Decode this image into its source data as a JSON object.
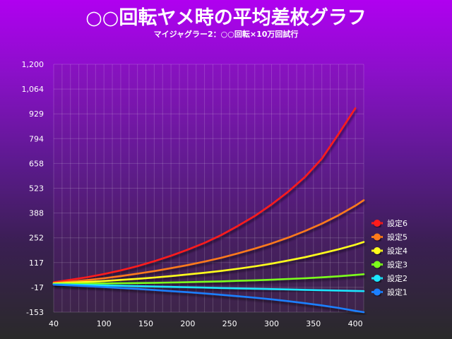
{
  "title": "○○回転ヤメ時の平均差枚グラフ",
  "subtitle": "マイジャグラー2：○○回転×10万回試行",
  "chart_data": {
    "type": "line",
    "title": "○○回転ヤメ時の平均差枚グラフ",
    "subtitle": "マイジャグラー2：○○回転×10万回試行",
    "xlabel": "",
    "ylabel": "",
    "xlim": [
      40,
      410
    ],
    "ylim": [
      -153,
      1200
    ],
    "x_ticks": [
      "40",
      "100",
      "150",
      "200",
      "250",
      "300",
      "350",
      "400"
    ],
    "y_ticks": [
      "1,200",
      "1,064",
      "929",
      "794",
      "658",
      "523",
      "388",
      "252",
      "117",
      "-17",
      "-153"
    ],
    "grid": true,
    "legend_position": "right",
    "series": [
      {
        "name": "設定6",
        "color": "#ff1a1a",
        "x": [
          40,
          60,
          80,
          100,
          120,
          140,
          160,
          180,
          200,
          220,
          240,
          260,
          280,
          300,
          320,
          340,
          360,
          380,
          400
        ],
        "values": [
          10,
          24,
          38,
          55,
          75,
          98,
          125,
          155,
          188,
          225,
          268,
          318,
          372,
          435,
          505,
          585,
          685,
          820,
          960
        ]
      },
      {
        "name": "設定5",
        "color": "#ff7a1a",
        "x": [
          40,
          60,
          80,
          100,
          120,
          140,
          160,
          180,
          200,
          220,
          240,
          260,
          280,
          300,
          320,
          340,
          360,
          380,
          400,
          410
        ],
        "values": [
          6,
          14,
          22,
          32,
          44,
          57,
          71,
          87,
          104,
          123,
          144,
          168,
          194,
          222,
          254,
          290,
          330,
          376,
          428,
          458
        ]
      },
      {
        "name": "設定4",
        "color": "#ffff1a",
        "x": [
          40,
          60,
          80,
          100,
          120,
          140,
          160,
          180,
          200,
          220,
          240,
          260,
          280,
          300,
          320,
          340,
          360,
          380,
          400,
          410
        ],
        "values": [
          4,
          8,
          12,
          17,
          23,
          29,
          36,
          44,
          53,
          62,
          72,
          84,
          97,
          112,
          129,
          147,
          168,
          190,
          215,
          230
        ]
      },
      {
        "name": "設定3",
        "color": "#7cff1a",
        "x": [
          40,
          60,
          80,
          100,
          120,
          140,
          160,
          180,
          200,
          220,
          240,
          260,
          280,
          300,
          320,
          340,
          360,
          380,
          400,
          410
        ],
        "values": [
          1,
          2,
          3,
          4,
          5,
          6,
          7,
          9,
          11,
          13,
          15,
          18,
          21,
          24,
          28,
          32,
          37,
          43,
          50,
          54
        ]
      },
      {
        "name": "設定2",
        "color": "#1ae5ff",
        "x": [
          40,
          60,
          80,
          100,
          120,
          140,
          160,
          180,
          200,
          220,
          240,
          260,
          280,
          300,
          320,
          340,
          360,
          380,
          400,
          410
        ],
        "values": [
          -1,
          -3,
          -5,
          -7,
          -9,
          -11,
          -13,
          -15,
          -17,
          -19,
          -21,
          -23,
          -25,
          -27,
          -29,
          -31,
          -33,
          -35,
          -37,
          -38
        ]
      },
      {
        "name": "設定1",
        "color": "#1a7fff",
        "x": [
          40,
          60,
          80,
          100,
          120,
          140,
          160,
          180,
          200,
          220,
          240,
          260,
          280,
          300,
          320,
          340,
          360,
          380,
          400,
          410
        ],
        "values": [
          -3,
          -7,
          -11,
          -16,
          -21,
          -26,
          -32,
          -38,
          -44,
          -51,
          -58,
          -66,
          -74,
          -83,
          -93,
          -104,
          -116,
          -130,
          -146,
          -153
        ]
      }
    ]
  }
}
